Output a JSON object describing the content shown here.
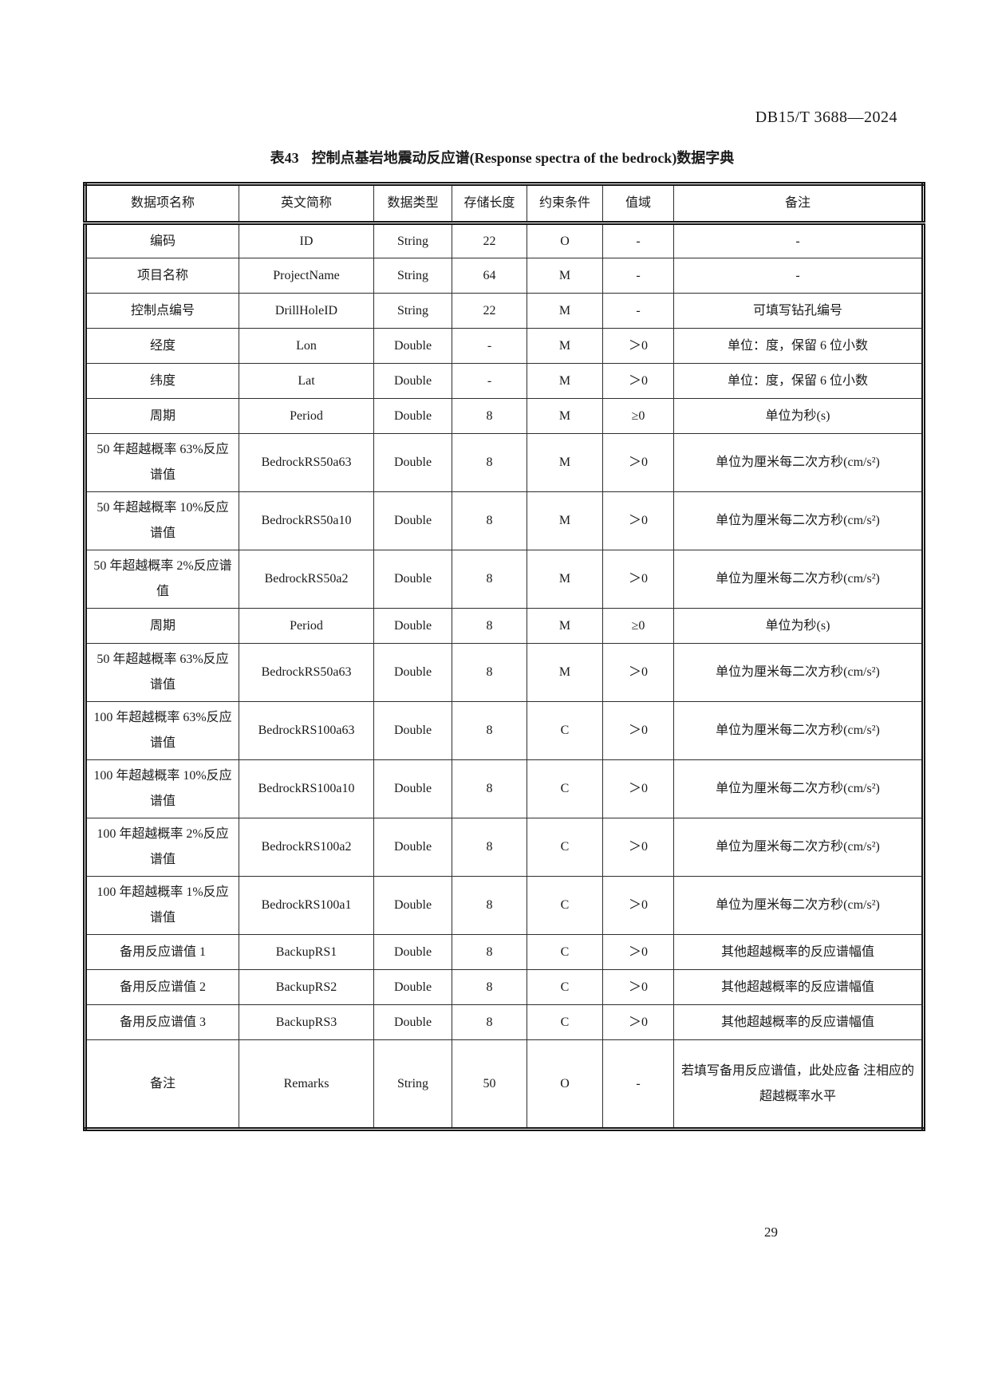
{
  "page": {
    "doc_code": "DB15/T 3688—2024",
    "page_number": "29"
  },
  "table": {
    "caption_label": "表43",
    "caption_title": "控制点基岩地震动反应谱(Response spectra of the bedrock)数据字典",
    "columns": [
      "数据项名称",
      "英文简称",
      "数据类型",
      "存储长度",
      "约束条件",
      "值域",
      "备注"
    ],
    "rows": [
      [
        "编码",
        "ID",
        "String",
        "22",
        "O",
        "-",
        "-"
      ],
      [
        "项目名称",
        "ProjectName",
        "String",
        "64",
        "M",
        "-",
        "-"
      ],
      [
        "控制点编号",
        "DrillHoleID",
        "String",
        "22",
        "M",
        "-",
        "可填写钻孔编号"
      ],
      [
        "经度",
        "Lon",
        "Double",
        "-",
        "M",
        "＞0",
        "单位：度，保留 6 位小数"
      ],
      [
        "纬度",
        "Lat",
        "Double",
        "-",
        "M",
        "＞0",
        "单位：度，保留 6 位小数"
      ],
      [
        "周期",
        "Period",
        "Double",
        "8",
        "M",
        "≥0",
        "单位为秒(s)"
      ],
      [
        "50 年超越概率 63%反应谱值",
        "BedrockRS50a63",
        "Double",
        "8",
        "M",
        "＞0",
        "单位为厘米每二次方秒(cm/s²)"
      ],
      [
        "50 年超越概率 10%反应谱值",
        "BedrockRS50a10",
        "Double",
        "8",
        "M",
        "＞0",
        "单位为厘米每二次方秒(cm/s²)"
      ],
      [
        "50 年超越概率 2%反应谱值",
        "BedrockRS50a2",
        "Double",
        "8",
        "M",
        "＞0",
        "单位为厘米每二次方秒(cm/s²)"
      ],
      [
        "周期",
        "Period",
        "Double",
        "8",
        "M",
        "≥0",
        "单位为秒(s)"
      ],
      [
        "50 年超越概率 63%反应谱值",
        "BedrockRS50a63",
        "Double",
        "8",
        "M",
        "＞0",
        "单位为厘米每二次方秒(cm/s²)"
      ],
      [
        "100 年超越概率 63%反应谱值",
        "BedrockRS100a63",
        "Double",
        "8",
        "C",
        "＞0",
        "单位为厘米每二次方秒(cm/s²)"
      ],
      [
        "100 年超越概率 10%反应谱值",
        "BedrockRS100a10",
        "Double",
        "8",
        "C",
        "＞0",
        "单位为厘米每二次方秒(cm/s²)"
      ],
      [
        "100 年超越概率 2%反应谱值",
        "BedrockRS100a2",
        "Double",
        "8",
        "C",
        "＞0",
        "单位为厘米每二次方秒(cm/s²)"
      ],
      [
        "100 年超越概率 1%反应谱值",
        "BedrockRS100a1",
        "Double",
        "8",
        "C",
        "＞0",
        "单位为厘米每二次方秒(cm/s²)"
      ],
      [
        "备用反应谱值 1",
        "BackupRS1",
        "Double",
        "8",
        "C",
        "＞0",
        "其他超越概率的反应谱幅值"
      ],
      [
        "备用反应谱值 2",
        "BackupRS2",
        "Double",
        "8",
        "C",
        "＞0",
        "其他超越概率的反应谱幅值"
      ],
      [
        "备用反应谱值 3",
        "BackupRS3",
        "Double",
        "8",
        "C",
        "＞0",
        "其他超越概率的反应谱幅值"
      ],
      [
        "备注",
        "Remarks",
        "String",
        "50",
        "O",
        "-",
        "若填写备用反应谱值，此处应备 注相应的超越概率水平"
      ]
    ]
  }
}
